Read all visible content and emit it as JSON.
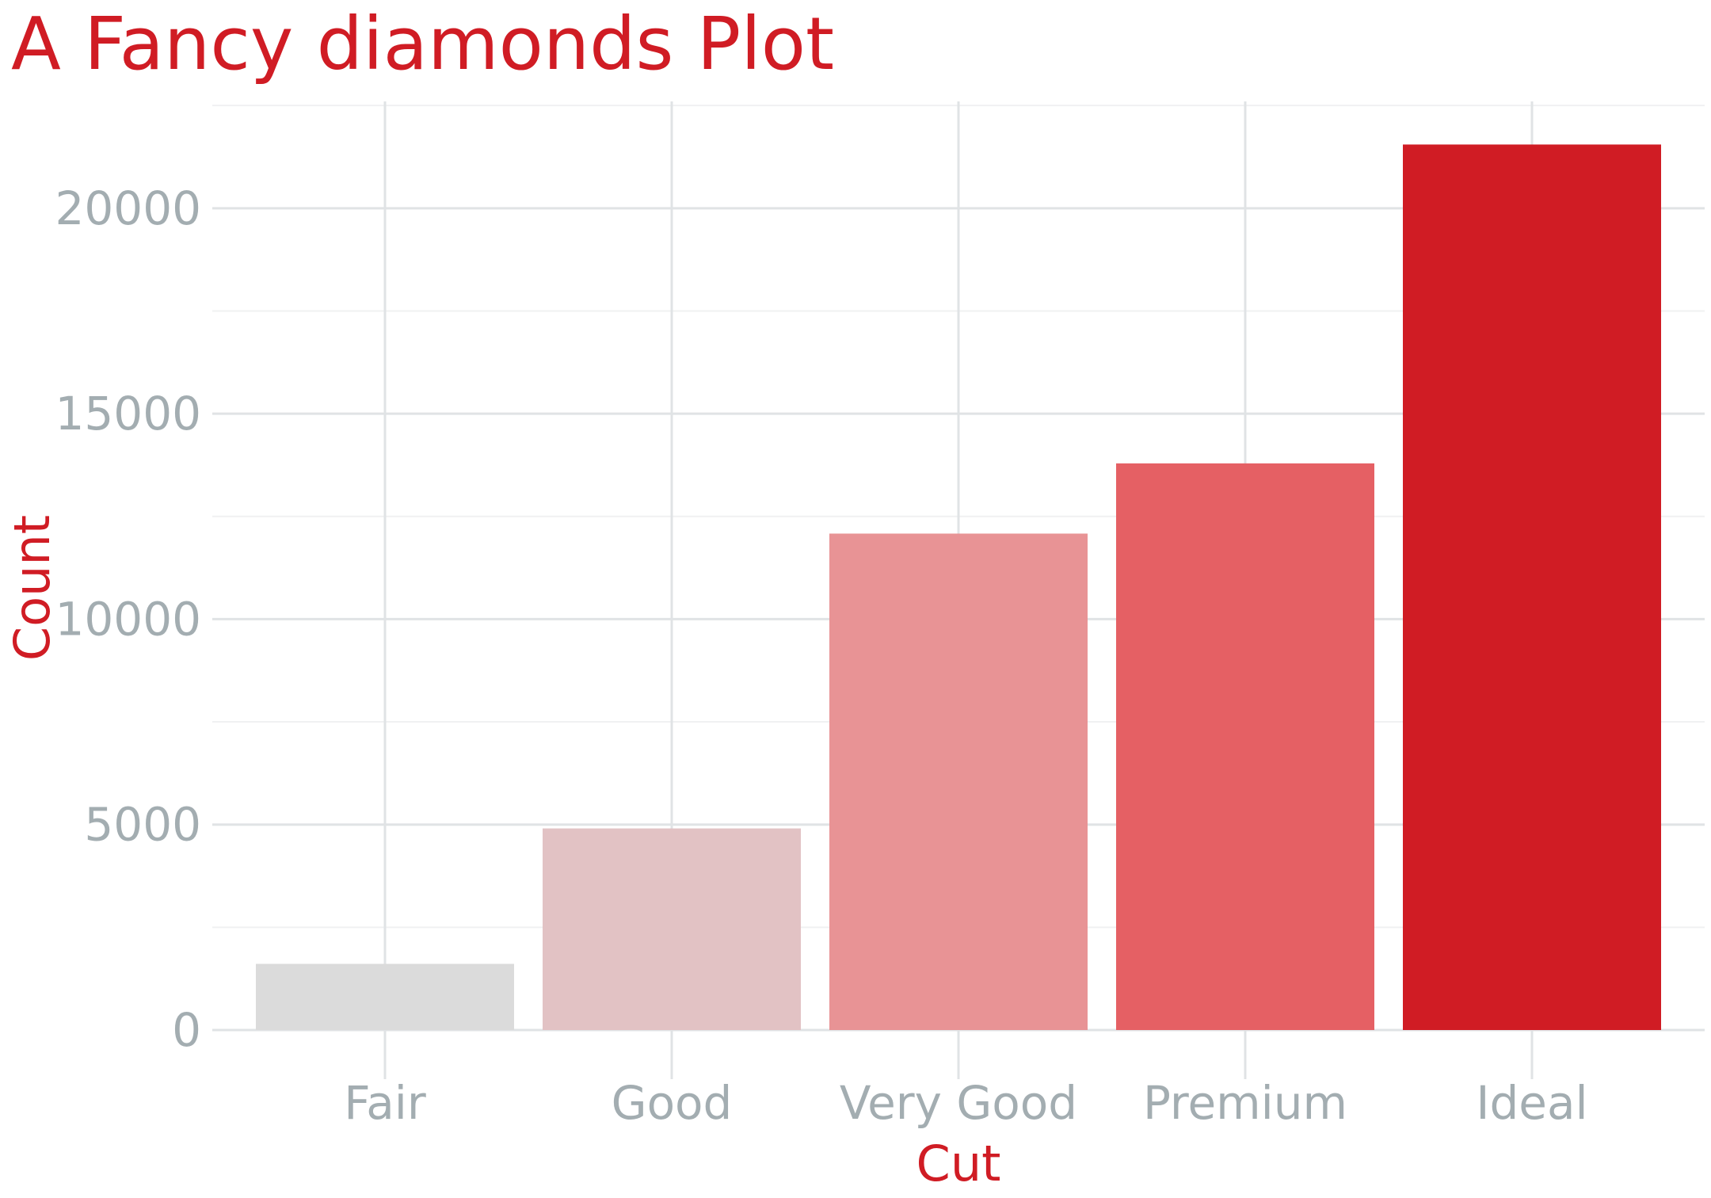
{
  "chart_data": {
    "type": "bar",
    "title": "A Fancy diamonds Plot",
    "xlabel": "Cut",
    "ylabel": "Count",
    "categories": [
      "Fair",
      "Good",
      "Very Good",
      "Premium",
      "Ideal"
    ],
    "values": [
      1610,
      4906,
      12082,
      13791,
      21551
    ],
    "colors": [
      "#dbdbdb",
      "#e2c2c4",
      "#e89395",
      "#e56064",
      "#d01c24"
    ],
    "ylim": [
      0,
      22600
    ],
    "yticks": [
      "0",
      "5000",
      "10000",
      "15000",
      "20000"
    ],
    "grid": true,
    "legend": "none"
  }
}
